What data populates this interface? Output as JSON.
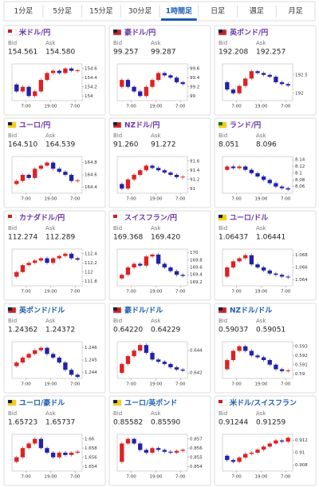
{
  "tabs": [
    "1分足",
    "5分足",
    "15分足",
    "30分足",
    "1時間足",
    "日足",
    "週足",
    "月足"
  ],
  "active_tab": 4,
  "labels": {
    "bid": "Bid",
    "ask": "Ask"
  },
  "x_labels": [
    "7:00",
    "19:00",
    "7:00"
  ],
  "cards": [
    {
      "name": "米ドル/円",
      "bid": "154.561",
      "ask": "154.580",
      "chart": {
        "ylim": [
          153.9,
          154.7
        ],
        "yticks": [
          154,
          154.2,
          154.4,
          154.6
        ],
        "prices": [
          154.25,
          154.1,
          154.2,
          154.0,
          154.1,
          154.35,
          154.5,
          154.55,
          154.5,
          154.6,
          154.55,
          154.56
        ]
      }
    },
    {
      "name": "豪ドル/円",
      "bid": "99.257",
      "ask": "99.287",
      "chart": {
        "ylim": [
          98.9,
          99.7
        ],
        "yticks": [
          99,
          99.2,
          99.4,
          99.6
        ],
        "prices": [
          99.2,
          99.35,
          99.2,
          99.1,
          99.0,
          99.2,
          99.35,
          99.5,
          99.45,
          99.4,
          99.3,
          99.26
        ]
      }
    },
    {
      "name": "英ポンド/円",
      "bid": "192.208",
      "ask": "192.257",
      "chart": {
        "ylim": [
          191.8,
          192.8
        ],
        "yticks": [
          192,
          192.5
        ],
        "prices": [
          192.3,
          192.1,
          192.0,
          192.2,
          192.4,
          192.6,
          192.55,
          192.5,
          192.45,
          192.3,
          192.25,
          192.21
        ]
      }
    },
    {
      "name": "ユーロ/円",
      "bid": "164.510",
      "ask": "164.539",
      "chart": {
        "ylim": [
          164.3,
          164.9
        ],
        "yticks": [
          164.4,
          164.6,
          164.8
        ],
        "prices": [
          164.45,
          164.5,
          164.6,
          164.55,
          164.7,
          164.75,
          164.8,
          164.7,
          164.65,
          164.6,
          164.5,
          164.51
        ]
      }
    },
    {
      "name": "NZドル/円",
      "bid": "91.260",
      "ask": "91.272",
      "chart": {
        "ylim": [
          90.9,
          91.7
        ],
        "yticks": [
          91,
          91.2,
          91.4,
          91.6
        ],
        "prices": [
          91.1,
          91.0,
          91.2,
          91.3,
          91.4,
          91.5,
          91.45,
          91.4,
          91.35,
          91.3,
          91.25,
          91.26
        ]
      }
    },
    {
      "name": "ランド/円",
      "bid": "8.051",
      "ask": "8.096",
      "chart": {
        "ylim": [
          8.04,
          8.15
        ],
        "yticks": [
          8.06,
          8.08,
          8.1,
          8.12,
          8.14
        ],
        "prices": [
          8.11,
          8.12,
          8.115,
          8.12,
          8.11,
          8.1,
          8.09,
          8.08,
          8.07,
          8.06,
          8.055,
          8.051
        ]
      }
    },
    {
      "name": "カナダドル/円",
      "bid": "112.274",
      "ask": "112.289",
      "chart": {
        "ylim": [
          111.7,
          112.5
        ],
        "yticks": [
          111.8,
          112,
          112.2,
          112.4
        ],
        "prices": [
          111.9,
          112.0,
          112.15,
          112.2,
          112.25,
          112.3,
          112.2,
          112.3,
          112.35,
          112.4,
          112.3,
          112.27
        ]
      }
    },
    {
      "name": "スイスフラン/円",
      "bid": "169.368",
      "ask": "169.420",
      "chart": {
        "ylim": [
          169.1,
          170.1
        ],
        "yticks": [
          169.2,
          169.4,
          169.6,
          169.8,
          170
        ],
        "prices": [
          169.3,
          169.4,
          169.6,
          169.7,
          169.65,
          169.9,
          169.95,
          169.7,
          169.6,
          169.5,
          169.4,
          169.37
        ]
      }
    },
    {
      "name": "ユーロ/ドル",
      "bid": "1.06437",
      "ask": "1.06441",
      "chart": {
        "ylim": [
          1.063,
          1.069
        ],
        "yticks": [
          1.064,
          1.066,
          1.068
        ],
        "prices": [
          1.0645,
          1.066,
          1.067,
          1.0675,
          1.068,
          1.0665,
          1.066,
          1.0655,
          1.065,
          1.0648,
          1.0645,
          1.06437
        ]
      }
    },
    {
      "name": "英ポンド/ドル",
      "bid": "1.24362",
      "ask": "1.24372",
      "chart": {
        "ylim": [
          1.2435,
          1.2465
        ],
        "yticks": [
          1.244,
          1.245,
          1.246
        ],
        "prices": [
          1.2445,
          1.2448,
          1.2452,
          1.2455,
          1.2458,
          1.246,
          1.2455,
          1.2452,
          1.2448,
          1.2442,
          1.2438,
          1.24362
        ]
      }
    },
    {
      "name": "豪ドル/ドル",
      "bid": "0.64220",
      "ask": "0.64229",
      "chart": {
        "ylim": [
          0.6415,
          0.6448
        ],
        "yticks": [
          0.642,
          0.644
        ],
        "prices": [
          0.642,
          0.6428,
          0.6435,
          0.644,
          0.6445,
          0.6438,
          0.6432,
          0.643,
          0.6428,
          0.6425,
          0.6423,
          0.6422
        ]
      }
    },
    {
      "name": "NZドル/ドル",
      "bid": "0.59037",
      "ask": "0.59051",
      "chart": {
        "ylim": [
          0.5895,
          0.5935
        ],
        "yticks": [
          0.59,
          0.591,
          0.592,
          0.593
        ],
        "prices": [
          0.5905,
          0.5915,
          0.5925,
          0.593,
          0.5925,
          0.592,
          0.5918,
          0.5915,
          0.591,
          0.5905,
          0.5903,
          0.59037
        ]
      }
    },
    {
      "name": "ユーロ/豪ドル",
      "bid": "1.65723",
      "ask": "1.65737",
      "chart": {
        "ylim": [
          1.653,
          1.661
        ],
        "yticks": [
          1.654,
          1.656,
          1.658,
          1.66
        ],
        "prices": [
          1.655,
          1.656,
          1.658,
          1.659,
          1.66,
          1.658,
          1.657,
          1.656,
          1.657,
          1.6565,
          1.657,
          1.65723
        ]
      }
    },
    {
      "name": "ユーロ/英ポンド",
      "bid": "0.85582",
      "ask": "0.85590",
      "chart": {
        "ylim": [
          0.8535,
          0.8575
        ],
        "yticks": [
          0.854,
          0.855,
          0.856,
          0.857
        ],
        "prices": [
          0.8545,
          0.8565,
          0.857,
          0.8565,
          0.8558,
          0.8555,
          0.856,
          0.8558,
          0.8556,
          0.8555,
          0.8557,
          0.85582
        ]
      }
    },
    {
      "name": "米ドル/スイスフラン",
      "bid": "0.91244",
      "ask": "0.91259",
      "chart": {
        "ylim": [
          0.907,
          0.913
        ],
        "yticks": [
          0.908,
          0.91,
          0.912
        ],
        "prices": [
          0.9095,
          0.9088,
          0.9085,
          0.9092,
          0.9098,
          0.91,
          0.9105,
          0.911,
          0.9115,
          0.912,
          0.9118,
          0.91244
        ]
      }
    }
  ]
}
